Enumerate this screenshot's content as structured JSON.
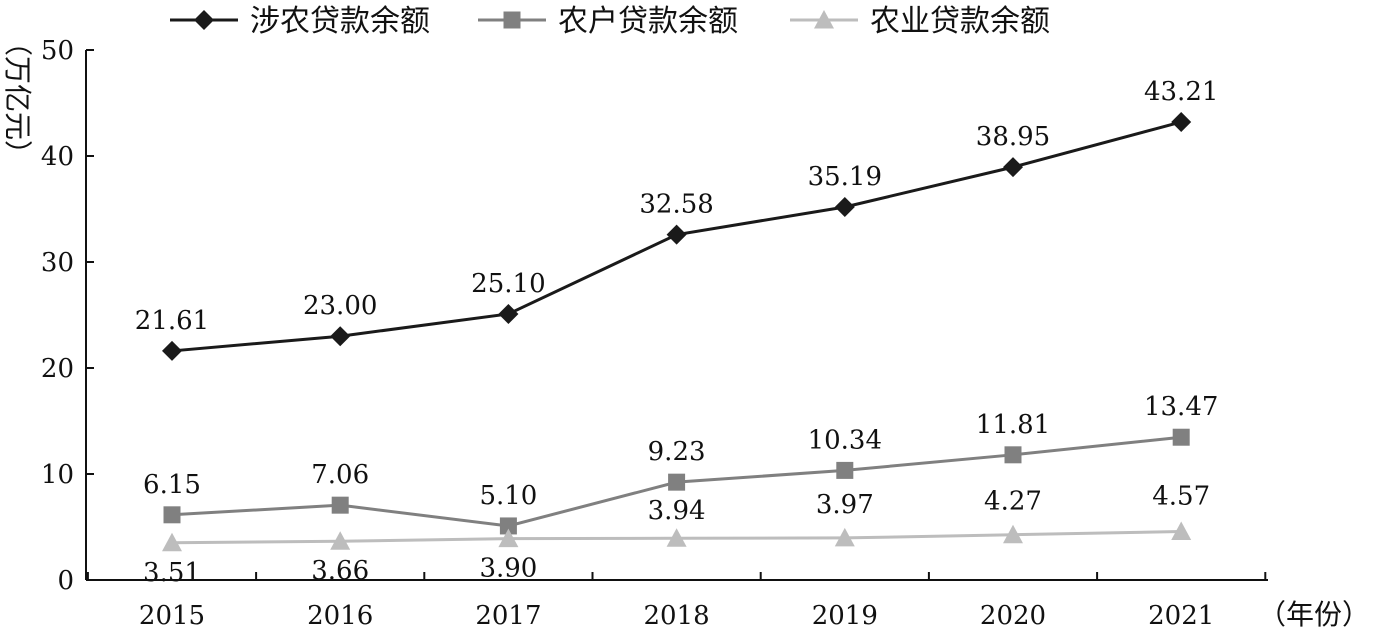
{
  "chart_data": {
    "type": "line",
    "categories": [
      "2015",
      "2016",
      "2017",
      "2018",
      "2019",
      "2020",
      "2021"
    ],
    "series": [
      {
        "name": "涉农贷款余额",
        "values": [
          21.61,
          23.0,
          25.1,
          32.58,
          35.19,
          38.95,
          43.21
        ],
        "labels": [
          "21.61",
          "23.00",
          "25.10",
          "32.58",
          "35.19",
          "38.95",
          "43.21"
        ],
        "color": "#1a1a1a",
        "marker": "diamond"
      },
      {
        "name": "农户贷款余额",
        "values": [
          6.15,
          7.06,
          5.1,
          9.23,
          10.34,
          11.81,
          13.47
        ],
        "labels": [
          "6.15",
          "7.06",
          "5.10",
          "9.23",
          "10.34",
          "11.81",
          "13.47"
        ],
        "color": "#808080",
        "marker": "square"
      },
      {
        "name": "农业贷款余额",
        "values": [
          3.51,
          3.66,
          3.9,
          3.94,
          3.97,
          4.27,
          4.57
        ],
        "labels": [
          "3.51",
          "3.66",
          "3.90",
          "3.94",
          "3.97",
          "4.27",
          "4.57"
        ],
        "color": "#bdbdbd",
        "marker": "triangle"
      }
    ],
    "ylabel": "（万亿元）",
    "xlabel": "（年份）",
    "ylim": [
      0,
      50
    ],
    "yticks": [
      "0",
      "10",
      "20",
      "30",
      "40",
      "50"
    ],
    "grid": false,
    "legend_position": "top"
  }
}
